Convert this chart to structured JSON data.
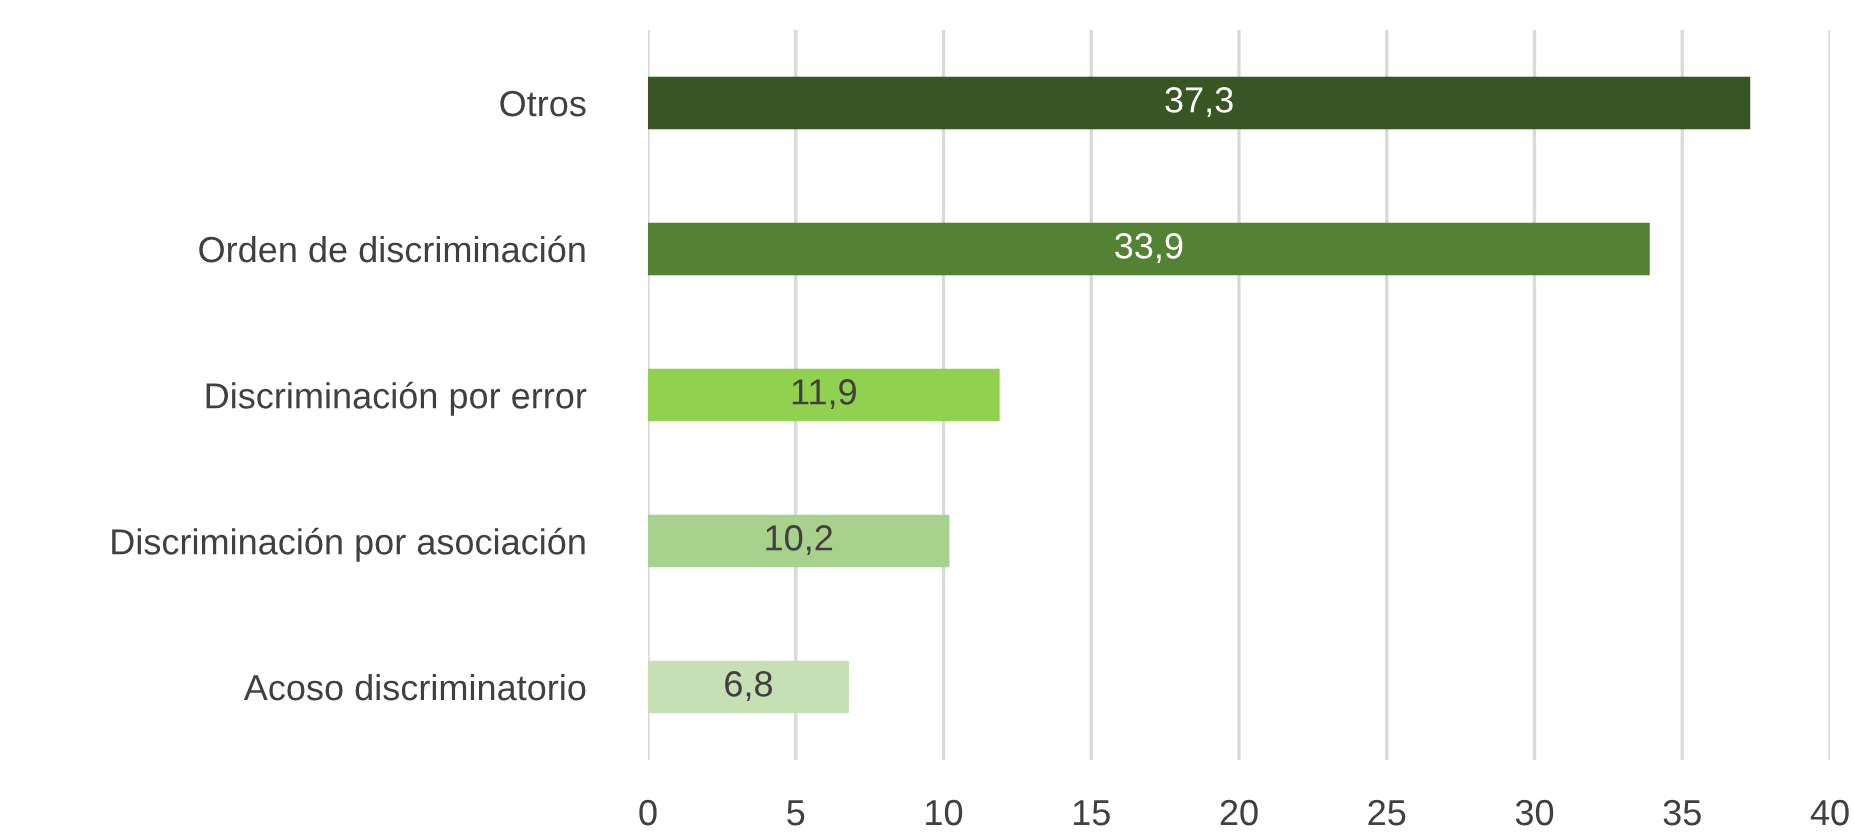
{
  "chart_data": {
    "type": "bar",
    "orientation": "horizontal",
    "categories": [
      "Otros",
      "Orden de discriminación",
      "Discriminación por error",
      "Discriminación por asociación",
      "Acoso discriminatorio"
    ],
    "values": [
      37.3,
      33.9,
      11.9,
      10.2,
      6.8
    ],
    "value_labels": [
      "37,3",
      "33,9",
      "11,9",
      "10,2",
      "6,8"
    ],
    "colors": [
      "#375623",
      "#548235",
      "#92d050",
      "#a9d18e",
      "#c5e0b4"
    ],
    "xlim": [
      0,
      40
    ],
    "xticks": [
      0,
      5,
      10,
      15,
      20,
      25,
      30,
      35,
      40
    ],
    "grid": "x"
  }
}
